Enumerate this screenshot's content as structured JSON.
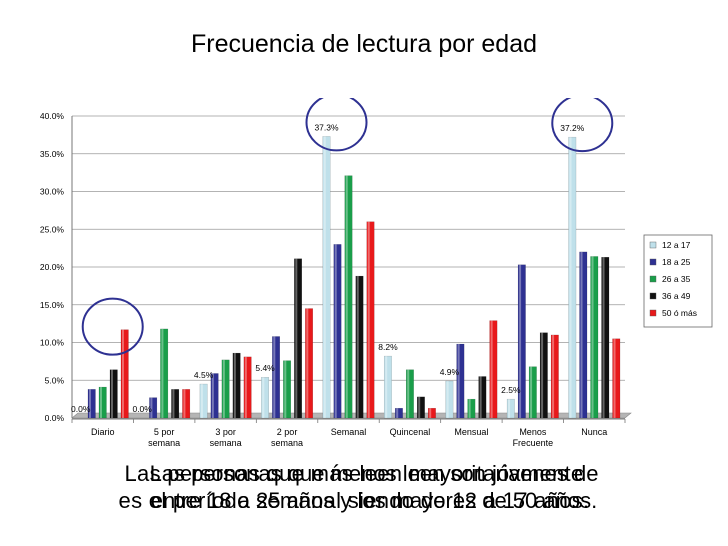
{
  "title": "Frecuencia de lectura por edad",
  "captions": {
    "a_line1": "Las personas que menos leen son jóvenes de",
    "a_line2": "entre 18 a 25 años y los mayores de 50 años.",
    "b_line1": "Las personas que más leen mayoritariamente",
    "b_line2": "es el período semanal siendo de 12 a 17 años."
  },
  "chart_data": {
    "type": "bar",
    "title": "",
    "xlabel": "",
    "ylabel": "",
    "ylim": [
      0,
      40
    ],
    "yticks": [
      "0.0%",
      "5.0%",
      "10.0%",
      "15.0%",
      "20.0%",
      "25.0%",
      "30.0%",
      "35.0%",
      "40.0%"
    ],
    "categories": [
      "Diario",
      "5 por semana",
      "3 por semana",
      "2 por semana",
      "Semanal",
      "Quincenal",
      "Mensual",
      "Menos Frecuente",
      "Nunca"
    ],
    "category_lines": [
      [
        "Diario"
      ],
      [
        "5 por",
        "semana"
      ],
      [
        "3 por",
        "semana"
      ],
      [
        "2 por",
        "semana"
      ],
      [
        "Semanal"
      ],
      [
        "Quincenal"
      ],
      [
        "Mensual"
      ],
      [
        "Menos",
        "Frecuente"
      ],
      [
        "Nunca"
      ]
    ],
    "legend_position": "right",
    "series": [
      {
        "name": "12 a 17",
        "color": "#bfe0ea",
        "values": [
          0.0,
          0.0,
          4.5,
          5.4,
          37.3,
          8.2,
          4.9,
          2.5,
          37.2
        ]
      },
      {
        "name": "18 a 25",
        "color": "#2e3192",
        "values": [
          3.8,
          2.7,
          5.9,
          10.8,
          23.0,
          1.3,
          9.8,
          20.3,
          22.0
        ]
      },
      {
        "name": "26 a 35",
        "color": "#1a9e4a",
        "values": [
          4.1,
          11.8,
          7.7,
          7.6,
          32.1,
          6.4,
          2.5,
          6.8,
          21.4
        ]
      },
      {
        "name": "36 a 49",
        "color": "#111111",
        "values": [
          6.4,
          3.8,
          8.6,
          21.1,
          18.8,
          2.8,
          5.5,
          11.3,
          21.3
        ]
      },
      {
        "name": "50 ó más",
        "color": "#e8191b",
        "values": [
          11.7,
          3.8,
          8.1,
          14.5,
          26.0,
          1.3,
          12.9,
          11.0,
          10.5
        ]
      }
    ],
    "data_labels": [
      {
        "category": "Diario",
        "series": "12 a 17",
        "text": "0.0%"
      },
      {
        "category": "5 por semana",
        "series": "12 a 17",
        "text": "0.0%"
      },
      {
        "category": "3 por semana",
        "series": "12 a 17",
        "text": "4.5%"
      },
      {
        "category": "2 por semana",
        "series": "12 a 17",
        "text": "5.4%"
      },
      {
        "category": "Semanal",
        "series": "12 a 17",
        "text": "37.3%"
      },
      {
        "category": "Quincenal",
        "series": "12 a 17",
        "text": "8.2%"
      },
      {
        "category": "Mensual",
        "series": "12 a 17",
        "text": "4.9%"
      },
      {
        "category": "Menos Frecuente",
        "series": "12 a 17",
        "text": "2.5%"
      },
      {
        "category": "Nunca",
        "series": "12 a 17",
        "text": "37.2%"
      }
    ],
    "highlight_circles": [
      "Diario",
      "Semanal",
      "Nunca"
    ],
    "highlight_color": "#2e3192"
  }
}
